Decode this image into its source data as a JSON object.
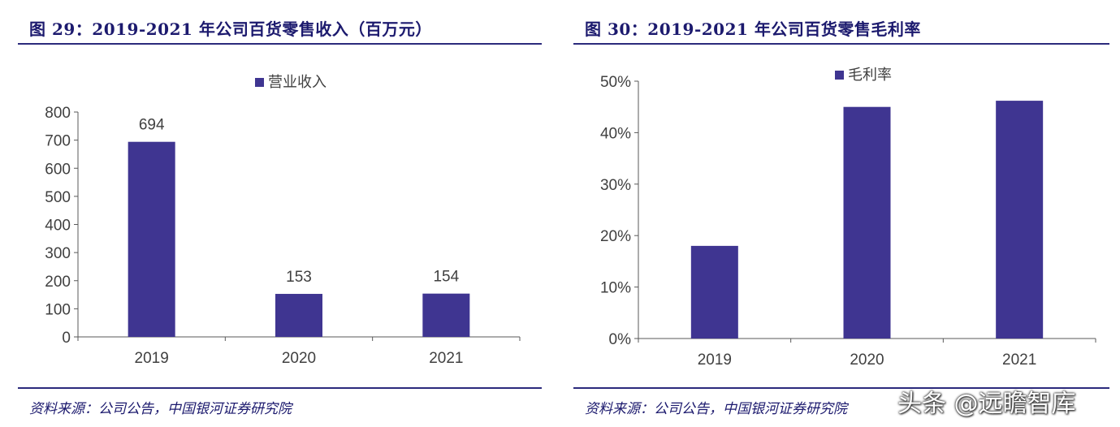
{
  "left": {
    "title": "图 29：2019-2021 年公司百货零售收入（百万元）",
    "source": "资料来源：公司公告，中国银河证券研究院"
  },
  "right": {
    "title": "图 30：2019-2021 年公司百货零售毛利率",
    "source": "资料来源：公司公告，中国银河证券研究院"
  },
  "watermark": "头条 @远瞻智库",
  "colors": {
    "bar": "#3f3591",
    "axis": "#595959",
    "text": "#404040",
    "accent": "#1c1a6e"
  },
  "chart_data": [
    {
      "type": "bar",
      "categories": [
        "2019",
        "2020",
        "2021"
      ],
      "series": [
        {
          "name": "营业收入",
          "values": [
            694,
            153,
            154
          ]
        }
      ],
      "data_labels": [
        "694",
        "153",
        "154"
      ],
      "ylim": [
        0,
        800
      ],
      "yticks": [
        0,
        100,
        200,
        300,
        400,
        500,
        600,
        700,
        800
      ],
      "ytick_labels": [
        "0",
        "100",
        "200",
        "300",
        "400",
        "500",
        "600",
        "700",
        "800"
      ],
      "xlabel": "",
      "ylabel": "",
      "grid": false,
      "legend": "top-center"
    },
    {
      "type": "bar",
      "categories": [
        "2019",
        "2020",
        "2021"
      ],
      "series": [
        {
          "name": "毛利率",
          "values": [
            0.18,
            0.45,
            0.462
          ]
        }
      ],
      "ylim": [
        0,
        0.5
      ],
      "yticks": [
        0,
        0.1,
        0.2,
        0.3,
        0.4,
        0.5
      ],
      "ytick_labels": [
        "0%",
        "10%",
        "20%",
        "30%",
        "40%",
        "50%"
      ],
      "xlabel": "",
      "ylabel": "",
      "grid": false,
      "legend": "top-center"
    }
  ]
}
